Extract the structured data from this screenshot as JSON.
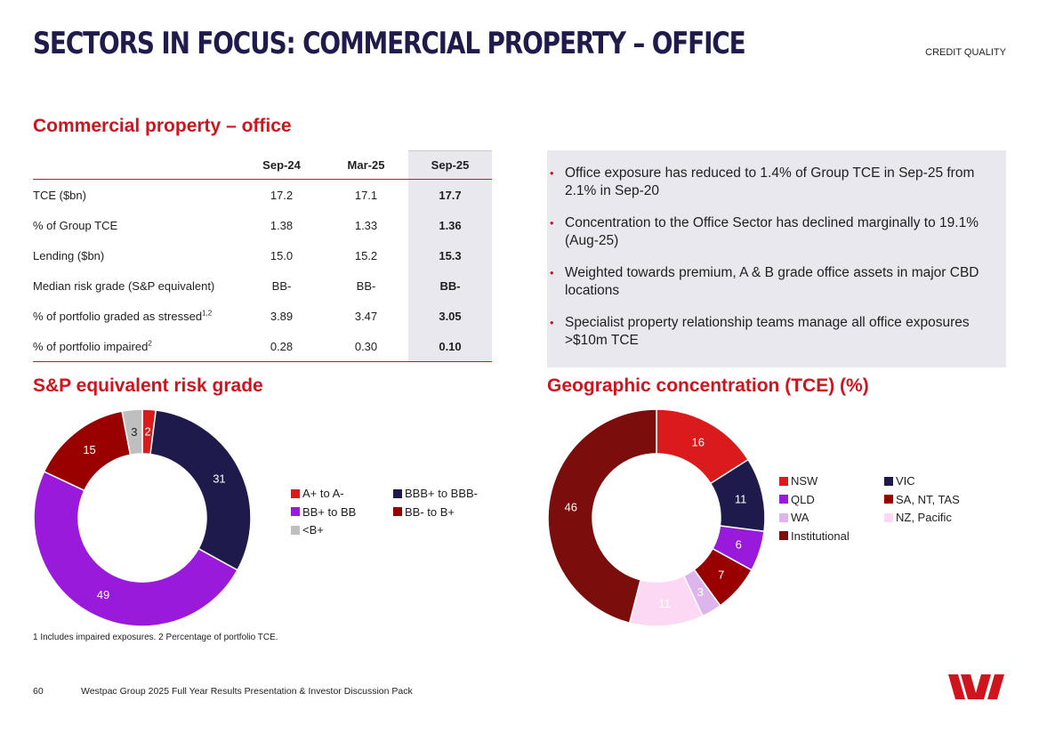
{
  "header": {
    "title": "SECTORS IN FOCUS: COMMERCIAL PROPERTY – OFFICE",
    "section": "CREDIT QUALITY"
  },
  "table": {
    "heading": "Commercial property – office",
    "columns": [
      "Sep-24",
      "Mar-25",
      "Sep-25"
    ],
    "rows": [
      {
        "label": "TCE ($bn)",
        "sup": "",
        "values": [
          "17.2",
          "17.1",
          "17.7"
        ]
      },
      {
        "label": "% of Group TCE",
        "sup": "",
        "values": [
          "1.38",
          "1.33",
          "1.36"
        ]
      },
      {
        "label": "Lending ($bn)",
        "sup": "",
        "values": [
          "15.0",
          "15.2",
          "15.3"
        ]
      },
      {
        "label": "Median risk grade (S&P equivalent)",
        "sup": "",
        "values": [
          "BB-",
          "BB-",
          "BB-"
        ]
      },
      {
        "label": "% of portfolio graded as stressed",
        "sup": "1,2",
        "values": [
          "3.89",
          "3.47",
          "3.05"
        ]
      },
      {
        "label": "% of portfolio impaired",
        "sup": "2",
        "values": [
          "0.28",
          "0.30",
          "0.10"
        ]
      }
    ]
  },
  "bullets": [
    "Office exposure has reduced to 1.4% of Group TCE in Sep-25 from 2.1% in Sep-20",
    "Concentration to the Office Sector has declined marginally to 19.1% (Aug-25)",
    "Weighted towards premium, A & B grade office assets in major CBD locations",
    "Specialist property relationship teams manage all office exposures >$10m TCE"
  ],
  "chart_data": [
    {
      "type": "pie",
      "title": "S&P equivalent risk grade",
      "categories": [
        "A+ to A-",
        "BBB+ to BBB-",
        "BB+ to BB",
        "BB- to B+",
        "<B+"
      ],
      "values": [
        2,
        31,
        49,
        15,
        3
      ],
      "colors": [
        "#da1a1b",
        "#1e1a4b",
        "#9a1adb",
        "#990000",
        "#bfbfbf"
      ],
      "label_colors": [
        "#ffffff",
        "#ffffff",
        "#ffffff",
        "#ffffff",
        "#1f1f1f"
      ]
    },
    {
      "type": "pie",
      "title": "Geographic concentration (TCE) (%)",
      "categories": [
        "NSW",
        "VIC",
        "QLD",
        "SA, NT, TAS",
        "WA",
        "NZ, Pacific",
        "Institutional"
      ],
      "values": [
        16,
        11,
        6,
        7,
        3,
        11,
        46
      ],
      "colors": [
        "#da1a1b",
        "#1e1a4b",
        "#9a1adb",
        "#990000",
        "#ddb5ec",
        "#fdd8f5",
        "#7c0d0d"
      ],
      "label_colors": [
        "#ffffff",
        "#ffffff",
        "#ffffff",
        "#ffffff",
        "#ffffff",
        "#ffffff",
        "#ffffff"
      ]
    }
  ],
  "footnote": "1 Includes impaired exposures. 2 Percentage of portfolio TCE.",
  "footer": {
    "page_number": "60",
    "text": "Westpac Group 2025 Full Year Results Presentation & Investor Discussion Pack"
  },
  "brand": {
    "accent": "#d0141d",
    "navy": "#1f1c4d"
  }
}
